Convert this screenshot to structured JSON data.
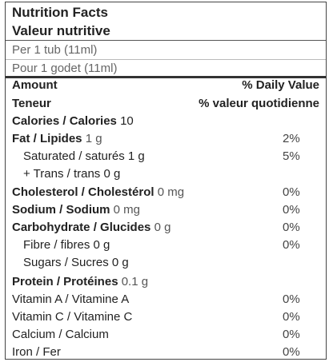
{
  "header": {
    "title": "Nutrition Facts",
    "title_fr": "Valeur nutritive"
  },
  "serving": {
    "size": "Per 1 tub (11ml)",
    "size_fr": "Pour 1 godet (11ml)"
  },
  "columns": {
    "amount": "Amount",
    "amount_fr": "Teneur",
    "daily_value": "% Daily Value",
    "daily_value_fr": "% valeur quotidienne"
  },
  "calories": {
    "label": "Calories / Calories",
    "amount": "10"
  },
  "rows": [
    {
      "label": "Fat / Lipides",
      "amount": "1 g",
      "daily_value": "2%"
    },
    {
      "label": "Saturated / saturés",
      "amount": "1 g",
      "daily_value": "5%"
    },
    {
      "label": "+ Trans / trans",
      "amount": "0 g"
    },
    {
      "label": "Cholesterol / Cholestérol",
      "amount": "0 mg",
      "daily_value": "0%"
    },
    {
      "label": "Sodium / Sodium",
      "amount": "0 mg",
      "daily_value": "0%"
    },
    {
      "label": "Carbohydrate / Glucides",
      "amount": "0 g",
      "daily_value": "0%"
    },
    {
      "label": "Fibre / fibres",
      "amount": "0 g",
      "daily_value": "0%"
    },
    {
      "label": "Sugars / Sucres",
      "amount": "0 g"
    },
    {
      "label": "Protein / Protéines",
      "amount": "0.1 g"
    },
    {
      "label": "Vitamin A / Vitamine A",
      "daily_value": "0%"
    },
    {
      "label": "Vitamin C / Vitamine C",
      "daily_value": "0%"
    },
    {
      "label": "Calcium / Calcium",
      "daily_value": "0%"
    },
    {
      "label": "Iron / Fer",
      "daily_value": "0%"
    }
  ]
}
